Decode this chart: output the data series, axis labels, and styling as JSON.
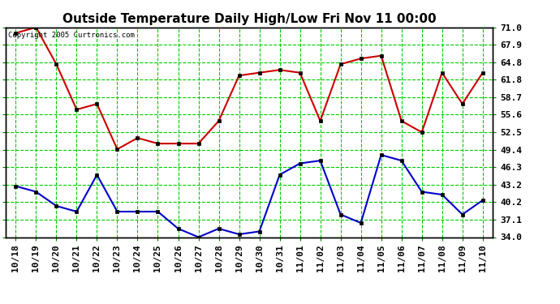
{
  "title": "Outside Temperature Daily High/Low Fri Nov 11 00:00",
  "copyright": "Copyright 2005 Curtronics.com",
  "x_labels": [
    "10/18",
    "10/19",
    "10/20",
    "10/21",
    "10/22",
    "10/23",
    "10/24",
    "10/25",
    "10/26",
    "10/27",
    "10/28",
    "10/29",
    "10/30",
    "10/31",
    "11/01",
    "11/02",
    "11/03",
    "11/04",
    "11/05",
    "11/06",
    "11/07",
    "11/08",
    "11/09",
    "11/10"
  ],
  "high_temps": [
    70.0,
    71.0,
    64.5,
    56.5,
    57.5,
    49.5,
    51.5,
    50.5,
    50.5,
    50.5,
    54.5,
    62.5,
    63.0,
    63.5,
    63.0,
    54.5,
    64.5,
    65.5,
    66.0,
    54.5,
    52.5,
    63.0,
    57.5,
    63.0
  ],
  "low_temps": [
    43.0,
    42.0,
    39.5,
    38.5,
    45.0,
    38.5,
    38.5,
    38.5,
    35.5,
    34.0,
    35.5,
    34.5,
    35.0,
    45.0,
    47.0,
    47.5,
    38.0,
    36.5,
    48.5,
    47.5,
    42.0,
    41.5,
    38.0,
    40.5
  ],
  "high_color": "#cc0000",
  "low_color": "#0000cc",
  "background_color": "#ffffff",
  "grid_color": "#00cc00",
  "title_color": "#000000",
  "y_min": 34.0,
  "y_max": 71.0,
  "y_ticks": [
    34.0,
    37.1,
    40.2,
    43.2,
    46.3,
    49.4,
    52.5,
    55.6,
    58.7,
    61.8,
    64.8,
    67.9,
    71.0
  ],
  "title_fontsize": 11,
  "tick_fontsize": 8
}
